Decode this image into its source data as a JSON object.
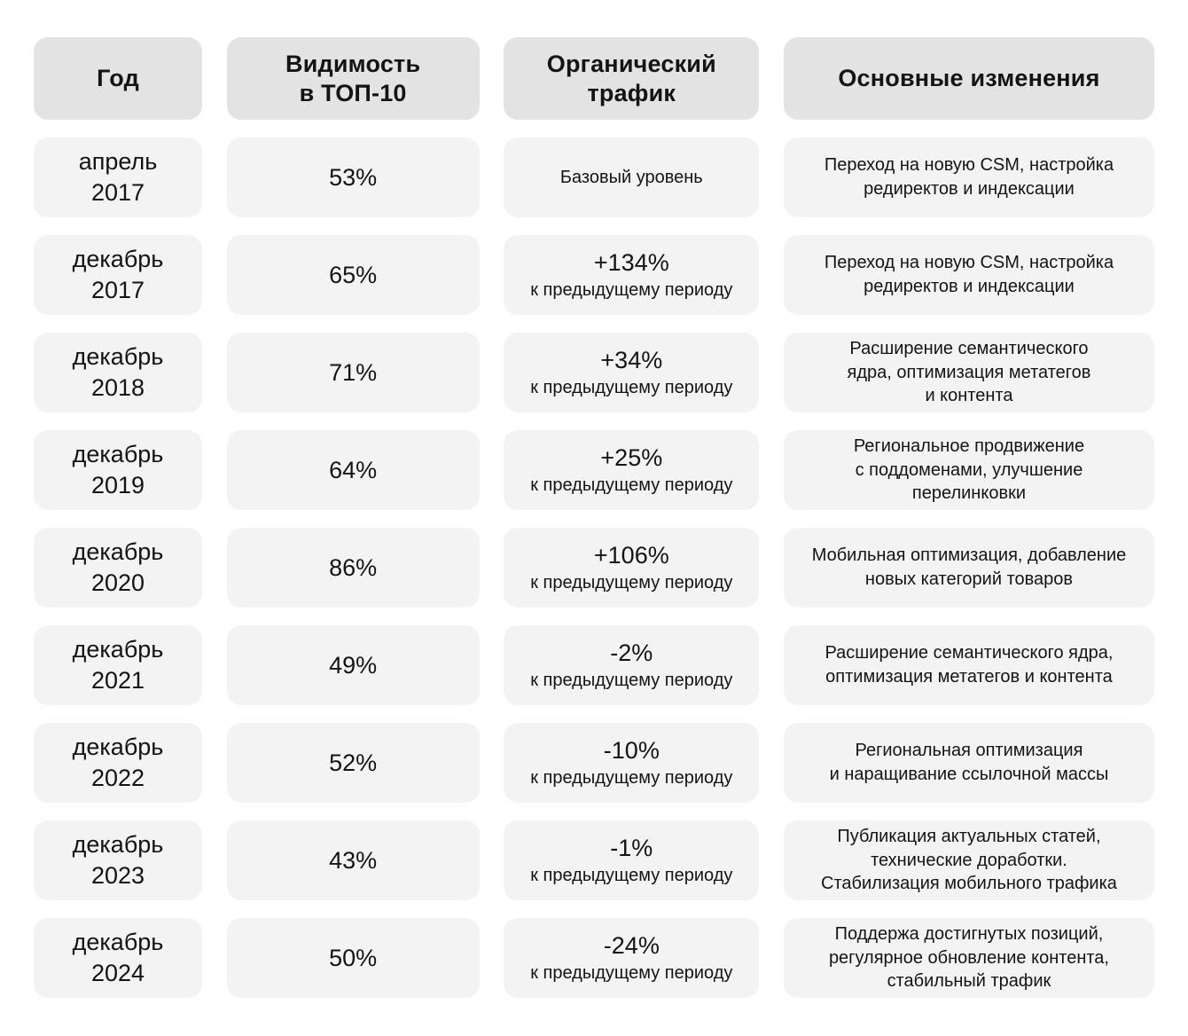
{
  "colors": {
    "header_bg": "#e3e3e3",
    "cell_bg": "#f3f3f4",
    "text": "#141414",
    "background": "#ffffff"
  },
  "table": {
    "headers": [
      {
        "label": "Год"
      },
      {
        "label": "Видимость\nв ТОП-10"
      },
      {
        "label": "Органический\nтрафик"
      },
      {
        "label": "Основные изменения"
      }
    ],
    "traffic_note_default": "к предыдущему периоду",
    "rows": [
      {
        "period": "апрель\n2017",
        "visibility": "53%",
        "traffic_value": "",
        "traffic_note": "Базовый уровень",
        "changes": "Переход на новую CSM, настройка\nредиректов и индексации"
      },
      {
        "period": "декабрь\n2017",
        "visibility": "65%",
        "traffic_value": "+134%",
        "traffic_note": "к предыдущему периоду",
        "changes": "Переход на новую CSM, настройка\nредиректов и индексации"
      },
      {
        "period": "декабрь\n2018",
        "visibility": "71%",
        "traffic_value": "+34%",
        "traffic_note": "к предыдущему периоду",
        "changes": "Расширение семантического\nядра, оптимизация метатегов\nи контента"
      },
      {
        "period": "декабрь\n2019",
        "visibility": "64%",
        "traffic_value": "+25%",
        "traffic_note": "к предыдущему периоду",
        "changes": "Региональное продвижение\nс поддоменами, улучшение\nперелинковки"
      },
      {
        "period": "декабрь\n2020",
        "visibility": "86%",
        "traffic_value": "+106%",
        "traffic_note": "к предыдущему периоду",
        "changes": "Мобильная оптимизация, добавление\nновых категорий товаров"
      },
      {
        "period": "декабрь\n2021",
        "visibility": "49%",
        "traffic_value": "-2%",
        "traffic_note": "к предыдущему периоду",
        "changes": "Расширение семантического ядра,\nоптимизация метатегов и контента"
      },
      {
        "period": "декабрь\n2022",
        "visibility": "52%",
        "traffic_value": "-10%",
        "traffic_note": "к предыдущему периоду",
        "changes": "Региональная оптимизация\nи наращивание ссылочной массы"
      },
      {
        "period": "декабрь\n2023",
        "visibility": "43%",
        "traffic_value": "-1%",
        "traffic_note": "к предыдущему периоду",
        "changes": "Публикация актуальных статей,\nтехнические доработки.\nСтабилизация мобильного трафика"
      },
      {
        "period": "декабрь\n2024",
        "visibility": "50%",
        "traffic_value": "-24%",
        "traffic_note": "к предыдущему периоду",
        "changes": "Поддержа достигнутых позиций,\nрегулярное обновление контента,\nстабильный трафик"
      }
    ]
  }
}
